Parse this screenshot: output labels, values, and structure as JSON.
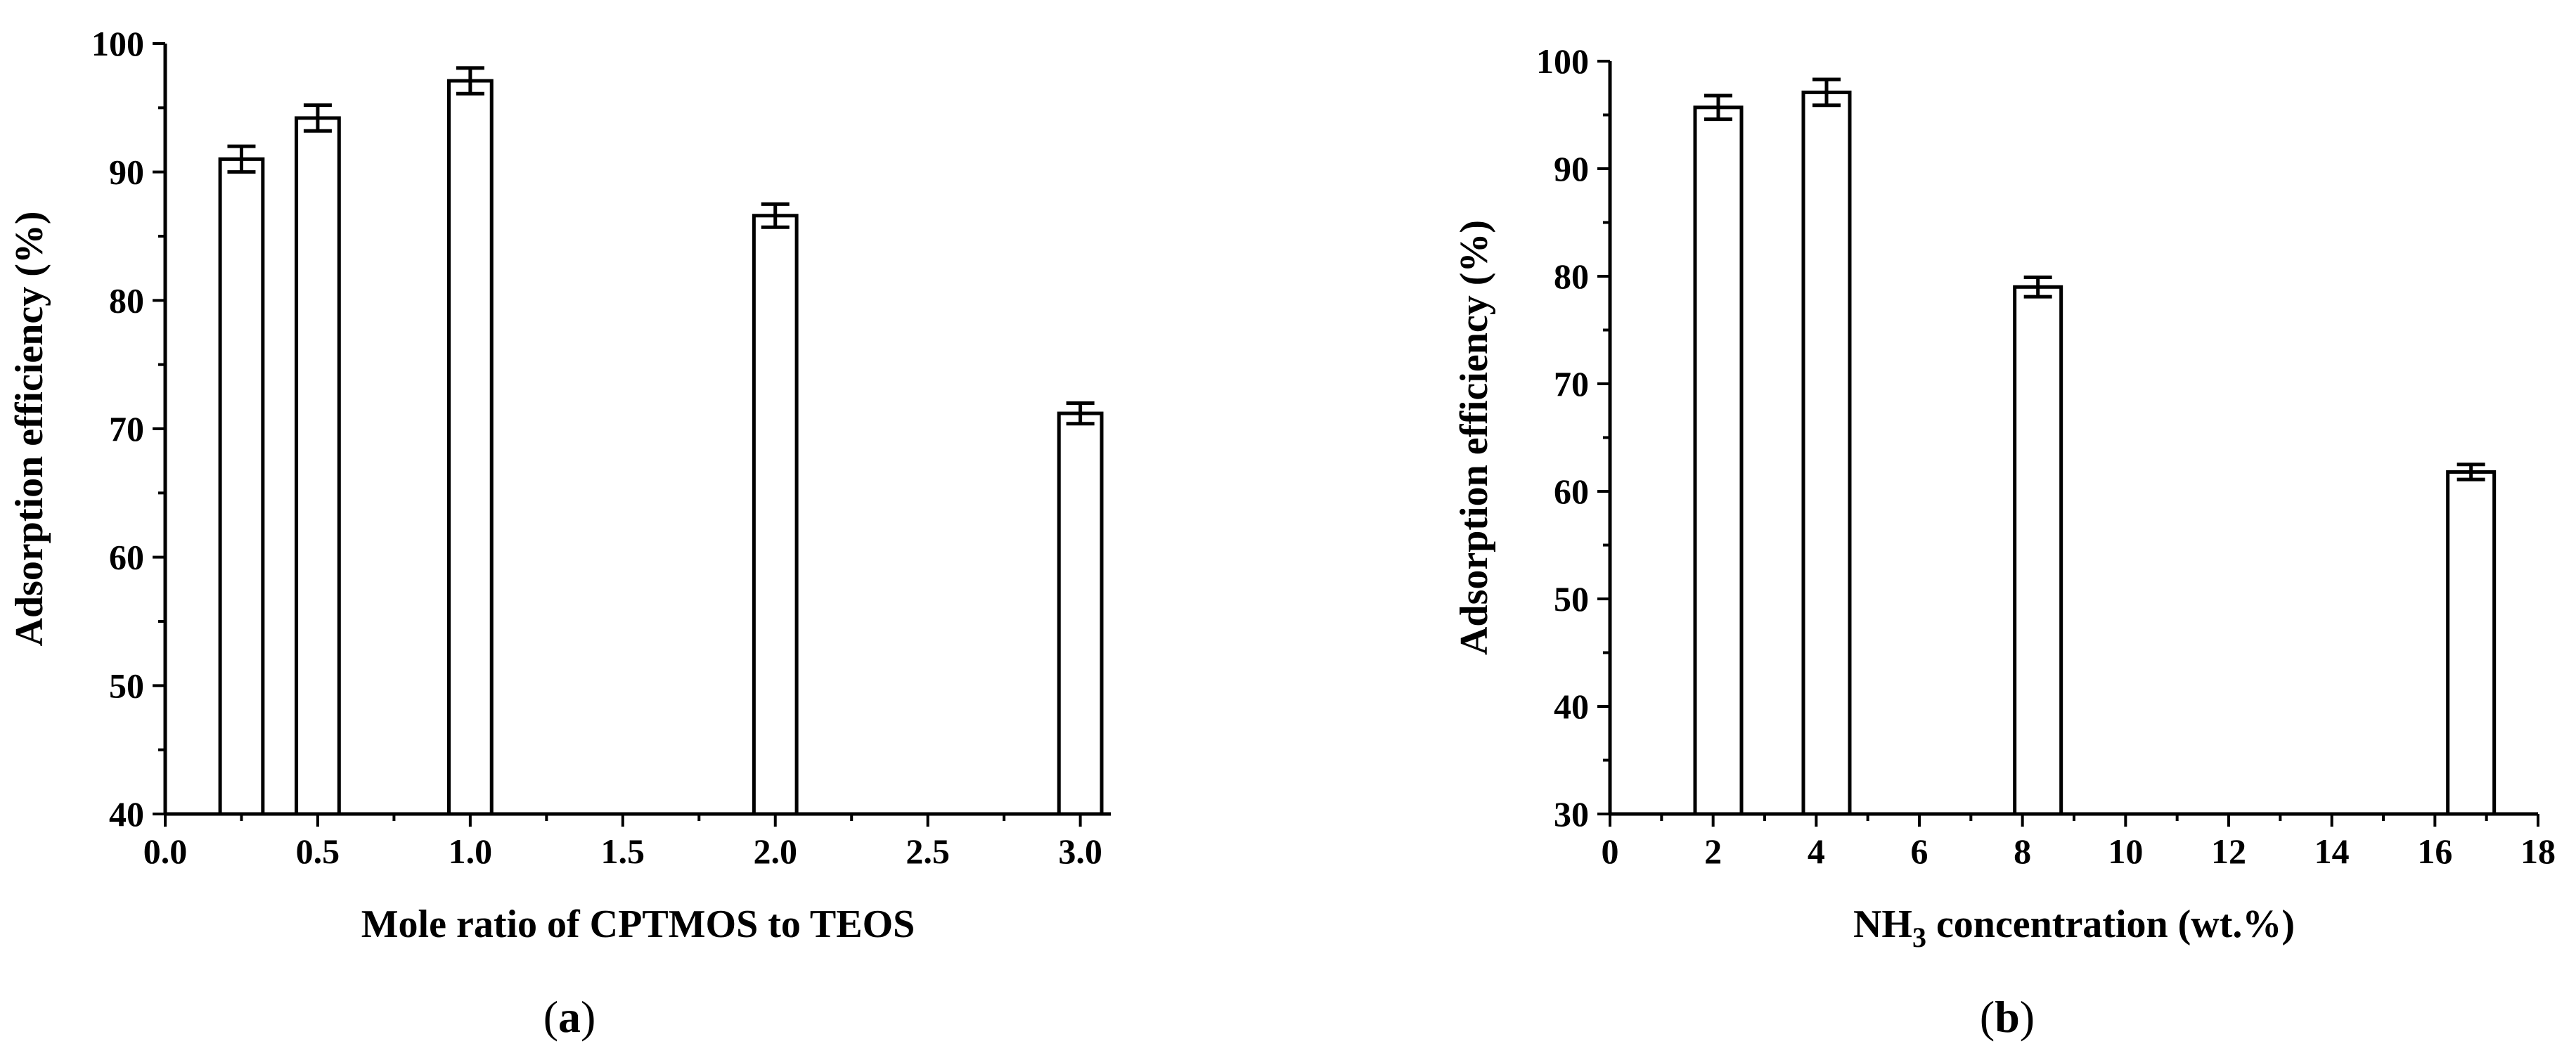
{
  "chart_data": [
    {
      "type": "bar",
      "panel_label": "(a)",
      "xlabel": "Mole ratio of CPTMOS to TEOS",
      "ylabel": "Adsorption efficiency (%)",
      "xlim": [
        0.0,
        3.1
      ],
      "ylim": [
        40,
        100
      ],
      "xticks": [
        0.0,
        0.5,
        1.0,
        1.5,
        2.0,
        2.5,
        3.0
      ],
      "xtick_labels": [
        "0.0",
        "0.5",
        "1.0",
        "1.5",
        "2.0",
        "2.5",
        "3.0"
      ],
      "yticks": [
        40,
        50,
        60,
        70,
        80,
        90,
        100
      ],
      "ytick_labels": [
        "40",
        "50",
        "60",
        "70",
        "80",
        "90",
        "100"
      ],
      "bar_width": 0.14,
      "x": [
        0.25,
        0.5,
        1.0,
        2.0,
        3.0
      ],
      "values": [
        91.0,
        94.2,
        97.1,
        86.6,
        71.2
      ],
      "errors": [
        1.0,
        1.0,
        1.0,
        0.9,
        0.8
      ],
      "grid": false
    },
    {
      "type": "bar",
      "panel_label": "(b)",
      "xlabel": "NH3 concentration (wt.%)",
      "xlabel_parts": [
        "NH",
        "3",
        " concentration (wt.%)"
      ],
      "ylabel": "Adsorption efficiency (%)",
      "xlim": [
        0,
        18
      ],
      "ylim": [
        30,
        100
      ],
      "xticks": [
        0,
        2,
        4,
        6,
        8,
        10,
        12,
        14,
        16,
        18
      ],
      "xtick_labels": [
        "0",
        "2",
        "4",
        "6",
        "8",
        "10",
        "12",
        "14",
        "16",
        "18"
      ],
      "yticks": [
        30,
        40,
        50,
        60,
        70,
        80,
        90,
        100
      ],
      "ytick_labels": [
        "30",
        "40",
        "50",
        "60",
        "70",
        "80",
        "90",
        "100"
      ],
      "bar_width": 0.9,
      "x": [
        2.1,
        4.2,
        8.3,
        16.7
      ],
      "values": [
        95.7,
        97.1,
        79.0,
        61.8
      ],
      "errors": [
        1.1,
        1.2,
        0.9,
        0.7
      ],
      "grid": false
    }
  ]
}
